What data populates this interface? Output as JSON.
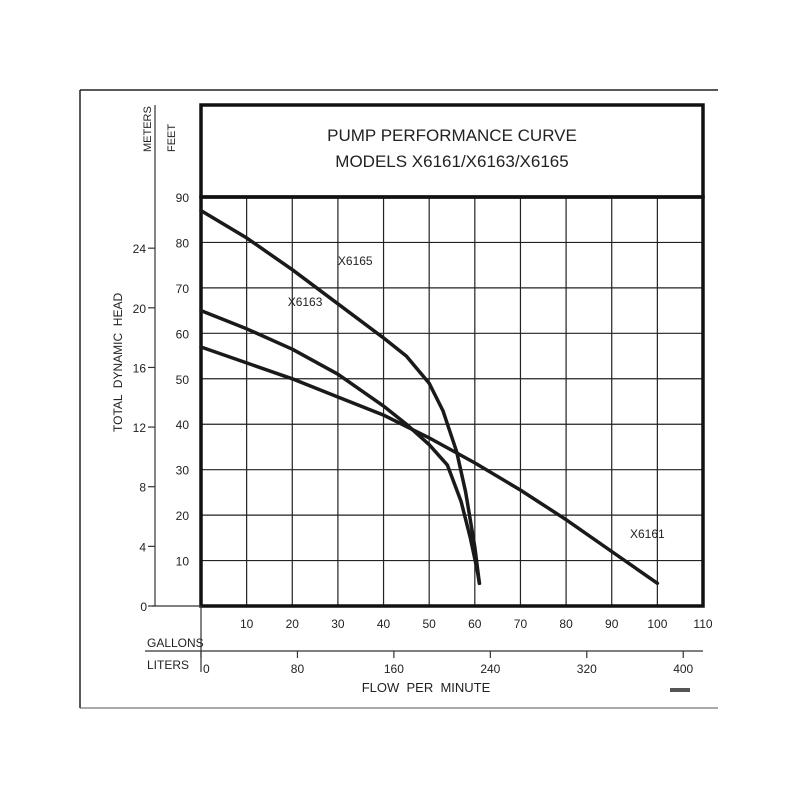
{
  "chart_data": {
    "type": "line",
    "title": "PUMP PERFORMANCE CURVE",
    "subtitle": "MODELS X6161/X6163/X6165",
    "xlabel": "FLOW  PER  MINUTE",
    "ylabel": "TOTAL  DYNAMIC  HEAD",
    "x_unit_primary": "GALLONS",
    "x_unit_secondary": "LITERS",
    "y_unit_primary": "FEET",
    "y_unit_secondary": "METERS",
    "xlim": [
      0,
      110
    ],
    "ylim": [
      0,
      90
    ],
    "grid": true,
    "x_ticks": [
      10,
      20,
      30,
      40,
      50,
      60,
      70,
      80,
      90,
      100,
      110
    ],
    "y_ticks": [
      10,
      20,
      30,
      40,
      50,
      60,
      70,
      80,
      90
    ],
    "y_ticks_zero": "0",
    "liters_ticks": [
      0,
      80,
      160,
      240,
      320,
      400
    ],
    "meters_ticks": [
      0,
      4,
      8,
      12,
      16,
      20,
      24
    ],
    "series": [
      {
        "name": "X6165",
        "label_at": [
          30,
          75
        ],
        "x": [
          0,
          10,
          20,
          30,
          40,
          45,
          50,
          53,
          56,
          58,
          60,
          61
        ],
        "y": [
          87,
          81,
          74,
          66.5,
          59,
          55,
          49,
          43,
          34,
          25,
          13,
          5
        ]
      },
      {
        "name": "X6163",
        "label_at": [
          19,
          66
        ],
        "x": [
          0,
          10,
          20,
          30,
          40,
          45,
          50,
          54,
          57,
          59,
          60.5,
          61
        ],
        "y": [
          65,
          61,
          56.5,
          51,
          44,
          40,
          35.5,
          31,
          23,
          15,
          8,
          5
        ]
      },
      {
        "name": "X6161",
        "label_at": [
          94,
          15
        ],
        "x": [
          0,
          10,
          20,
          30,
          40,
          50,
          60,
          70,
          80,
          90,
          100
        ],
        "y": [
          57,
          53.5,
          50,
          46,
          42,
          37,
          31.5,
          25.5,
          19,
          12,
          5
        ]
      }
    ]
  }
}
